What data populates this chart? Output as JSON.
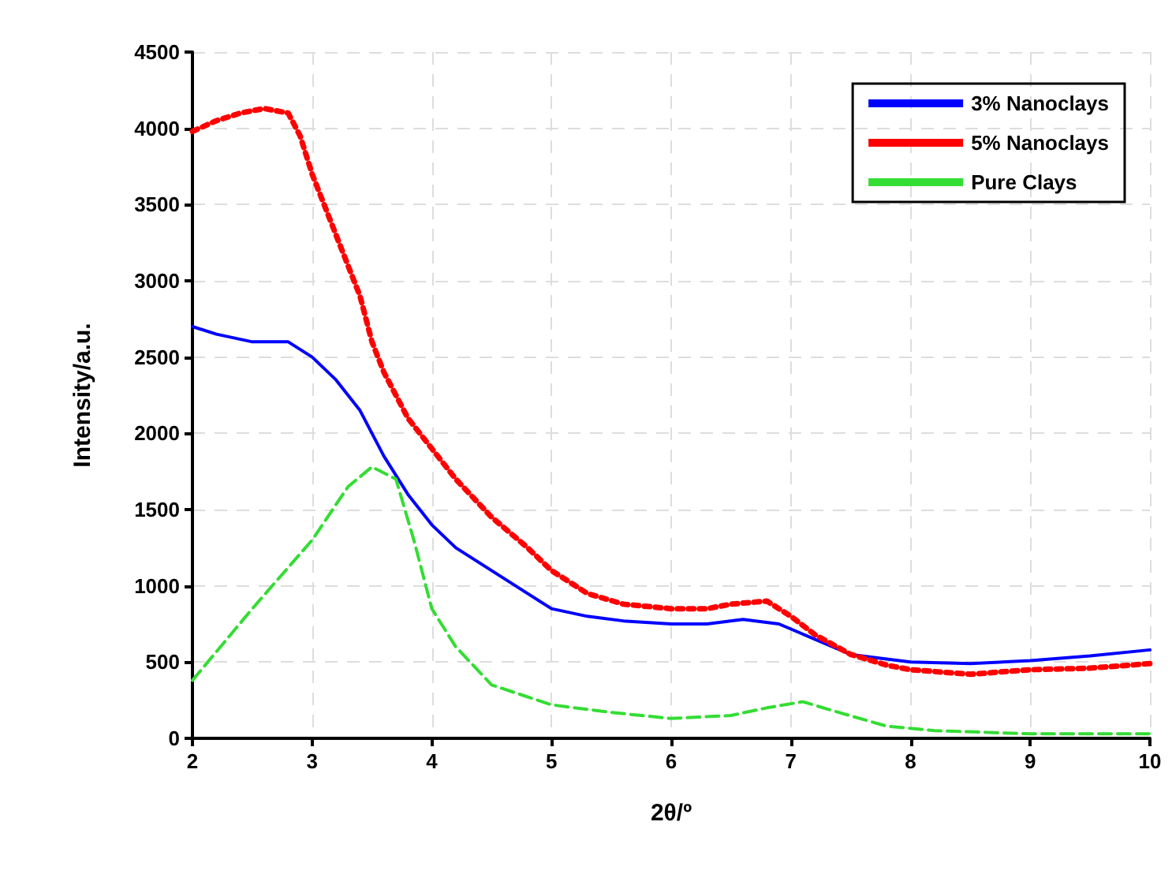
{
  "chart_data": {
    "type": "line",
    "xlabel": "2θ/º",
    "ylabel": "Intensity/a.u.",
    "xlim": [
      2,
      10
    ],
    "xticks": [
      2,
      3,
      4,
      5,
      6,
      7,
      8,
      9,
      10
    ],
    "ylim": [
      0,
      4500
    ],
    "yticks": [
      0,
      500,
      1000,
      1500,
      2000,
      2500,
      3000,
      3500,
      4000,
      4500
    ],
    "grid": true,
    "legend": "top right",
    "marker": "none",
    "series": [
      {
        "name": "3% Nanoclays",
        "color": "#0000ff",
        "line_style": "solid",
        "x": [
          2,
          2.2,
          2.5,
          2.8,
          3,
          3.2,
          3.4,
          3.6,
          3.8,
          4,
          4.2,
          4.5,
          4.8,
          5,
          5.3,
          5.6,
          6,
          6.3,
          6.6,
          6.9,
          7.2,
          7.5,
          7.8,
          8,
          8.5,
          9,
          9.5,
          10
        ],
        "values": [
          2700,
          2650,
          2600,
          2600,
          2500,
          2350,
          2150,
          1850,
          1600,
          1400,
          1250,
          1100,
          950,
          850,
          800,
          770,
          750,
          750,
          780,
          750,
          650,
          550,
          520,
          500,
          490,
          510,
          540,
          580
        ]
      },
      {
        "name": "5% Nanoclays",
        "color": "#ff0000",
        "line_style": "dotted",
        "x": [
          2,
          2.2,
          2.4,
          2.6,
          2.8,
          2.9,
          3,
          3.2,
          3.4,
          3.5,
          3.6,
          3.8,
          4,
          4.2,
          4.5,
          4.8,
          5,
          5.3,
          5.6,
          6,
          6.3,
          6.5,
          6.8,
          7,
          7.2,
          7.5,
          7.8,
          8,
          8.5,
          9,
          9.5,
          10
        ],
        "values": [
          3980,
          4050,
          4100,
          4130,
          4100,
          3950,
          3700,
          3300,
          2900,
          2600,
          2400,
          2100,
          1900,
          1700,
          1450,
          1250,
          1100,
          950,
          880,
          850,
          850,
          880,
          900,
          800,
          680,
          550,
          480,
          450,
          420,
          450,
          460,
          490
        ]
      },
      {
        "name": "Pure Clays",
        "color": "#33dd33",
        "line_style": "dashed",
        "x": [
          2,
          2.5,
          3,
          3.3,
          3.5,
          3.7,
          3.85,
          4,
          4.2,
          4.5,
          5,
          5.5,
          6,
          6.5,
          6.8,
          7.1,
          7.4,
          7.8,
          8.2,
          9,
          10
        ],
        "values": [
          380,
          850,
          1300,
          1650,
          1780,
          1700,
          1300,
          850,
          600,
          350,
          220,
          170,
          130,
          150,
          200,
          240,
          170,
          80,
          50,
          30,
          30
        ]
      }
    ]
  }
}
